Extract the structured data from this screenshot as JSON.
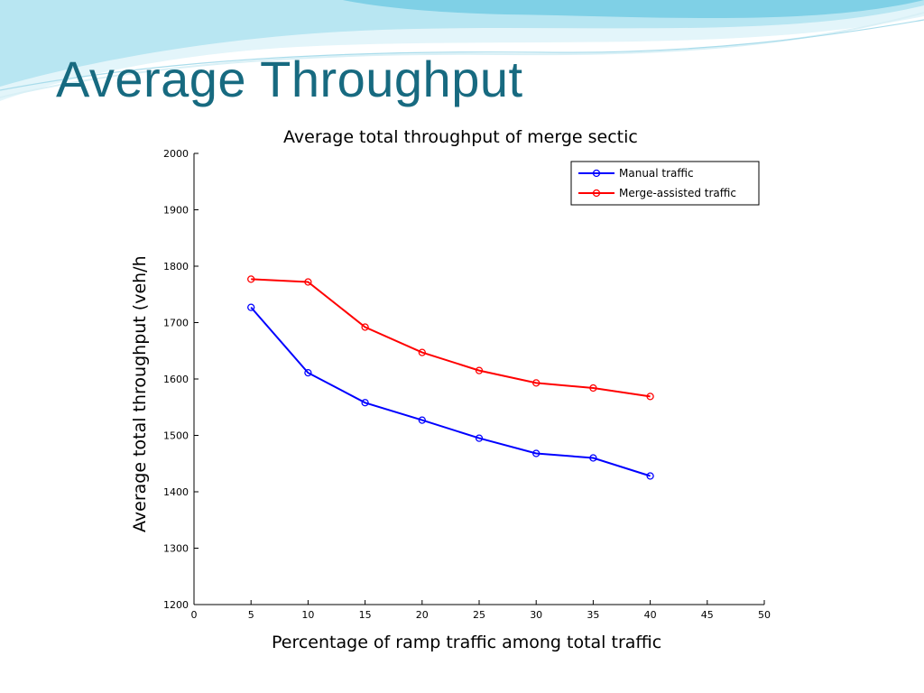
{
  "slide": {
    "title": "Average Throughput",
    "accent_color": "#176a80",
    "wave_colors": [
      "#7fd0e6",
      "#b8e6f2",
      "#e3f5fa"
    ]
  },
  "chart_data": {
    "type": "line",
    "title": "Average total throughput of merge sectic",
    "xlabel": "Percentage of ramp traffic among total traffic",
    "ylabel": "Average total throughput (veh/h",
    "xlim": [
      0,
      50
    ],
    "ylim": [
      1200,
      2000
    ],
    "x_ticks": [
      0,
      5,
      10,
      15,
      20,
      25,
      30,
      35,
      40,
      45,
      50
    ],
    "y_ticks": [
      1200,
      1300,
      1400,
      1500,
      1600,
      1700,
      1800,
      1900,
      2000
    ],
    "grid": false,
    "legend_position": "top-right",
    "x": [
      5,
      10,
      15,
      20,
      25,
      30,
      35,
      40
    ],
    "series": [
      {
        "name": "Manual traffic",
        "color": "#0000ff",
        "marker": "circle",
        "values": [
          1727,
          1611,
          1558,
          1527,
          1495,
          1468,
          1460,
          1428
        ]
      },
      {
        "name": "Merge-assisted traffic",
        "color": "#ff0000",
        "marker": "circle",
        "values": [
          1777,
          1772,
          1692,
          1647,
          1615,
          1593,
          1584,
          1569
        ]
      }
    ]
  }
}
